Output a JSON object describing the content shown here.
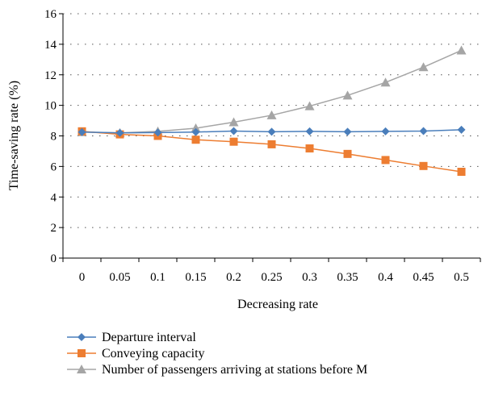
{
  "chart_data": {
    "type": "line",
    "title": "",
    "xlabel": "Decreasing rate",
    "ylabel": "Time-saving rate (%)",
    "categories": [
      "0",
      "0.05",
      "0.1",
      "0.15",
      "0.2",
      "0.25",
      "0.3",
      "0.35",
      "0.4",
      "0.45",
      "0.5"
    ],
    "ylim": [
      0,
      16
    ],
    "yticks": [
      0,
      2,
      4,
      6,
      8,
      10,
      12,
      14,
      16
    ],
    "grid": "horizontal dotted",
    "legend_position": "bottom",
    "series": [
      {
        "name": "Departure interval",
        "color": "#4a7ebb",
        "marker": "diamond",
        "values": [
          8.25,
          8.2,
          8.22,
          8.25,
          8.32,
          8.27,
          8.3,
          8.27,
          8.3,
          8.32,
          8.4
        ]
      },
      {
        "name": "Conveying capacity",
        "color": "#ed7d31",
        "marker": "square",
        "values": [
          8.3,
          8.1,
          8.0,
          7.75,
          7.62,
          7.45,
          7.18,
          6.82,
          6.42,
          6.03,
          5.65
        ]
      },
      {
        "name": "Number of passengers arriving at stations before M",
        "color": "#a5a5a5",
        "marker": "triangle",
        "values": [
          8.25,
          8.2,
          8.3,
          8.5,
          8.9,
          9.35,
          9.95,
          10.65,
          11.5,
          12.5,
          13.6
        ]
      }
    ]
  }
}
